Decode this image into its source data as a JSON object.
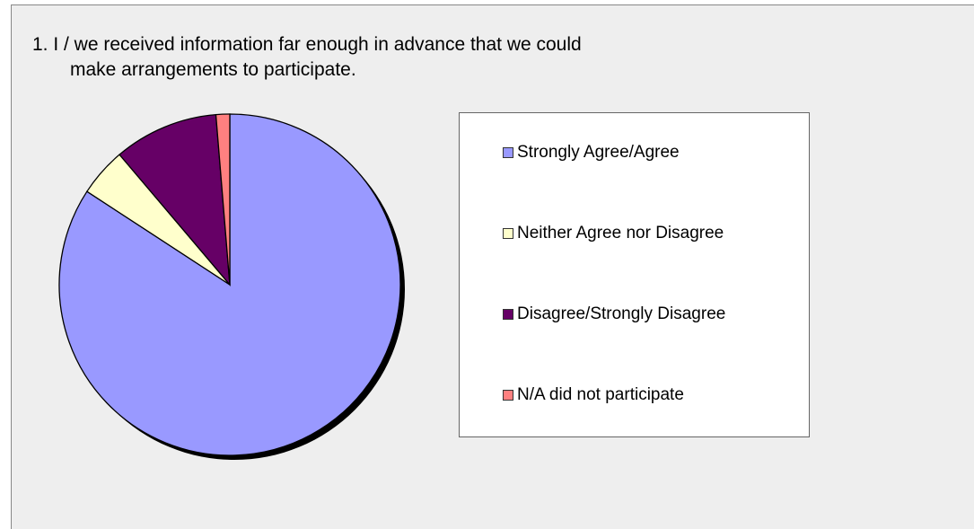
{
  "chart_data": {
    "type": "pie",
    "title": [
      "1.  I / we received information far enough in advance that we could",
      "make arrangements to participate."
    ],
    "categories": [
      "Strongly Agree/Agree",
      "Neither Agree nor Disagree",
      "Disagree/Strongly Disagree",
      "N/A did not participate"
    ],
    "values": [
      84.2,
      4.6,
      9.9,
      1.3
    ],
    "colors": [
      "#9999ff",
      "#ffffcc",
      "#660066",
      "#ff8080"
    ],
    "legend": "right"
  }
}
